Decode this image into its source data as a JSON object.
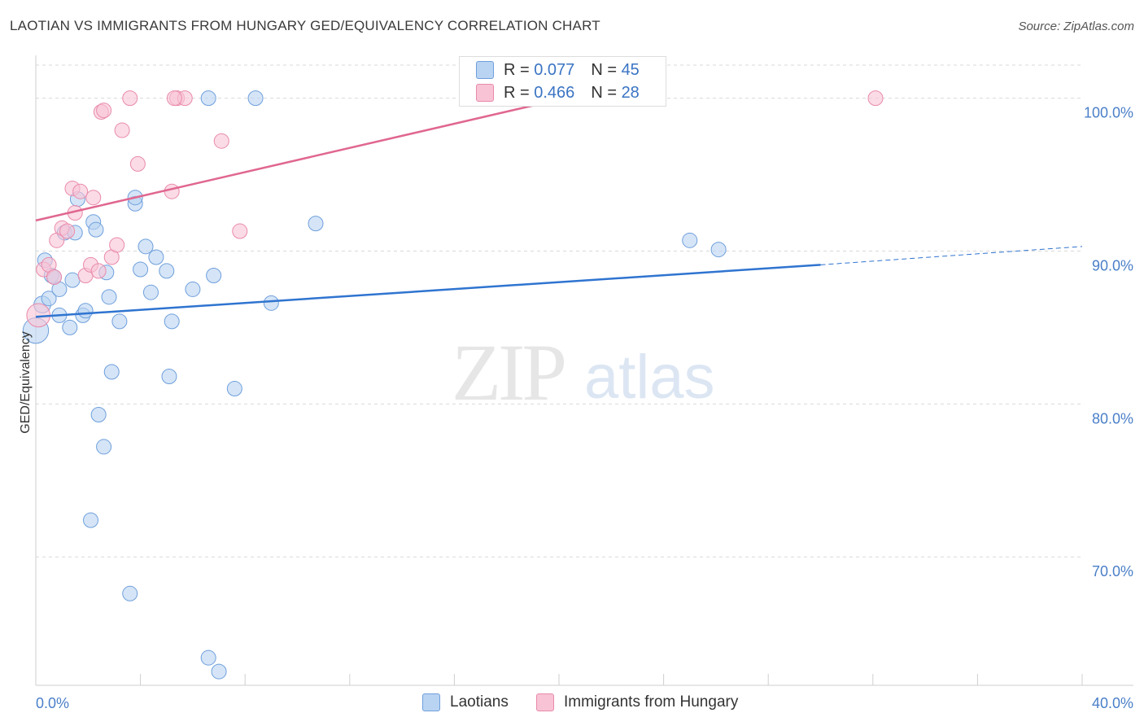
{
  "title": "LAOTIAN VS IMMIGRANTS FROM HUNGARY GED/EQUIVALENCY CORRELATION CHART",
  "source": "Source: ZipAtlas.com",
  "watermark": {
    "part1": "ZIP",
    "part2": "atlas"
  },
  "legend_top": [
    {
      "r_label": "R = ",
      "r_value": "0.077",
      "n_label": "N = ",
      "n_value": "45"
    },
    {
      "r_label": "R = ",
      "r_value": "0.466",
      "n_label": "N = ",
      "n_value": "28"
    }
  ],
  "legend_bottom": [
    "Laotians",
    "Immigrants from Hungary"
  ],
  "colors": {
    "blue_fill": "#b9d3f2",
    "blue_stroke": "#6f9fdc",
    "blue_line": "#2f74d0",
    "pink_fill": "#f8c3d5",
    "pink_stroke": "#e98aaa",
    "pink_line": "#e0678f",
    "axis_text": "#4a7fc8",
    "grid": "#d9d9d9"
  },
  "chart_data": {
    "type": "scatter",
    "title": "LAOTIAN VS IMMIGRANTS FROM HUNGARY GED/EQUIVALENCY CORRELATION CHART",
    "xlabel": "",
    "ylabel": "GED/Equivalency",
    "xlim": [
      0,
      40
    ],
    "ylim": [
      61.6,
      102.8
    ],
    "x_tick_labels": [
      "0.0%",
      "40.0%"
    ],
    "y_ticks": [
      70,
      80,
      90,
      100
    ],
    "y_tick_labels": [
      "70.0%",
      "80.0%",
      "90.0%",
      "100.0%"
    ],
    "series": [
      {
        "name": "Laotians",
        "color": "blue",
        "R": 0.077,
        "N": 45,
        "trend": {
          "x0": 0,
          "y0": 85.7,
          "x1": 30,
          "y1": 89.1,
          "dash_x1": 40,
          "dash_y1": 90.3
        },
        "points": [
          [
            0.0,
            84.8,
            22
          ],
          [
            0.25,
            86.5,
            14
          ],
          [
            0.35,
            89.4,
            12
          ],
          [
            0.5,
            86.9,
            12
          ],
          [
            0.6,
            88.4,
            12
          ],
          [
            0.7,
            88.3,
            12
          ],
          [
            0.9,
            87.5,
            12
          ],
          [
            0.9,
            85.8,
            12
          ],
          [
            1.1,
            91.2,
            12
          ],
          [
            1.3,
            85.0,
            12
          ],
          [
            1.4,
            88.1,
            12
          ],
          [
            1.5,
            91.2,
            12
          ],
          [
            1.6,
            93.4,
            12
          ],
          [
            1.8,
            85.8,
            12
          ],
          [
            1.9,
            86.1,
            12
          ],
          [
            2.2,
            91.9,
            12
          ],
          [
            2.3,
            91.4,
            12
          ],
          [
            2.7,
            88.6,
            12
          ],
          [
            2.8,
            87.0,
            12
          ],
          [
            2.9,
            82.1,
            12
          ],
          [
            3.2,
            85.4,
            12
          ],
          [
            3.8,
            93.1,
            12
          ],
          [
            3.8,
            93.5,
            12
          ],
          [
            4.0,
            88.8,
            12
          ],
          [
            4.2,
            90.3,
            12
          ],
          [
            4.4,
            87.3,
            12
          ],
          [
            4.6,
            89.6,
            12
          ],
          [
            5.0,
            88.7,
            12
          ],
          [
            5.1,
            81.8,
            12
          ],
          [
            5.2,
            85.4,
            12
          ],
          [
            6.0,
            87.5,
            12
          ],
          [
            6.6,
            100.0,
            12
          ],
          [
            6.8,
            88.4,
            12
          ],
          [
            7.6,
            81.0,
            12
          ],
          [
            8.4,
            100.0,
            12
          ],
          [
            9.0,
            86.6,
            12
          ],
          [
            10.7,
            91.8,
            12
          ],
          [
            2.4,
            79.3,
            12
          ],
          [
            2.6,
            77.2,
            12
          ],
          [
            2.1,
            72.4,
            12
          ],
          [
            3.6,
            67.6,
            12
          ],
          [
            6.6,
            63.4,
            12
          ],
          [
            7.0,
            62.5,
            12
          ],
          [
            25.0,
            90.7,
            12
          ],
          [
            26.1,
            90.1,
            12
          ]
        ]
      },
      {
        "name": "Immigrants from Hungary",
        "color": "pink",
        "R": 0.466,
        "N": 28,
        "trend": {
          "x0": 0,
          "y0": 92.0,
          "x1": 22,
          "y1": 100.7
        },
        "points": [
          [
            0.1,
            85.8,
            20
          ],
          [
            0.3,
            88.8,
            12
          ],
          [
            0.5,
            89.1,
            12
          ],
          [
            0.7,
            88.3,
            12
          ],
          [
            0.8,
            90.7,
            12
          ],
          [
            1.0,
            91.5,
            12
          ],
          [
            1.2,
            91.3,
            12
          ],
          [
            1.4,
            94.1,
            12
          ],
          [
            1.5,
            92.5,
            12
          ],
          [
            1.7,
            93.9,
            12
          ],
          [
            1.9,
            88.4,
            12
          ],
          [
            2.1,
            89.1,
            12
          ],
          [
            2.2,
            93.5,
            12
          ],
          [
            2.4,
            88.7,
            12
          ],
          [
            2.5,
            99.1,
            12
          ],
          [
            2.6,
            99.2,
            12
          ],
          [
            2.9,
            89.6,
            12
          ],
          [
            3.1,
            90.4,
            12
          ],
          [
            3.3,
            97.9,
            12
          ],
          [
            3.6,
            100.0,
            12
          ],
          [
            3.9,
            95.7,
            12
          ],
          [
            5.2,
            93.9,
            12
          ],
          [
            5.4,
            100.0,
            12
          ],
          [
            5.7,
            100.0,
            12
          ],
          [
            7.1,
            97.2,
            12
          ],
          [
            7.8,
            91.3,
            12
          ],
          [
            32.1,
            100.0,
            12
          ],
          [
            5.3,
            100.0,
            12
          ]
        ]
      }
    ]
  }
}
